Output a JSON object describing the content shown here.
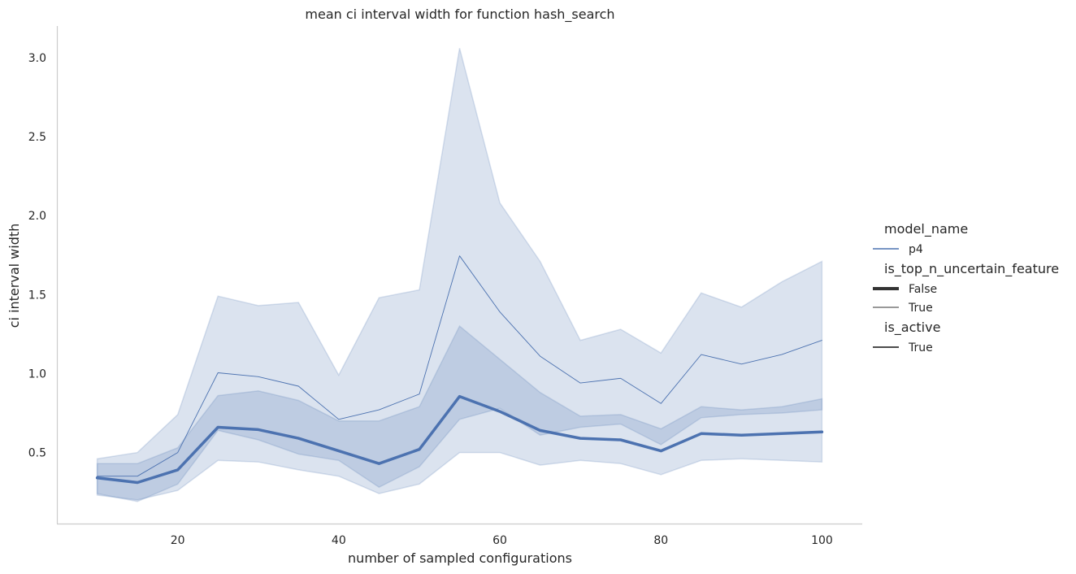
{
  "chart_data": {
    "type": "line",
    "title": "mean ci interval width for function hash_search",
    "xlabel": "number of sampled configurations",
    "ylabel": "ci interval width",
    "xlim": [
      5,
      105
    ],
    "ylim": [
      0.05,
      3.2
    ],
    "xticks": [
      20,
      40,
      60,
      80,
      100
    ],
    "yticks": [
      0.5,
      1.0,
      1.5,
      2.0,
      2.5,
      3.0
    ],
    "ytick_labels": [
      "0.5",
      "1.0",
      "1.5",
      "2.0",
      "2.5",
      "3.0"
    ],
    "grid": false,
    "color": "#4C72B0",
    "x": [
      10,
      15,
      20,
      25,
      30,
      35,
      40,
      45,
      50,
      55,
      60,
      65,
      70,
      75,
      80,
      85,
      90,
      95,
      100
    ],
    "series": [
      {
        "name": "False",
        "style": "thick",
        "values": [
          0.34,
          0.31,
          0.39,
          0.66,
          0.645,
          0.59,
          0.51,
          0.43,
          0.52,
          0.855,
          0.76,
          0.64,
          0.59,
          0.58,
          0.51,
          0.62,
          0.61,
          0.62,
          0.63
        ],
        "ci_low": [
          0.24,
          0.19,
          0.3,
          0.64,
          0.58,
          0.49,
          0.45,
          0.28,
          0.41,
          0.71,
          0.78,
          0.61,
          0.66,
          0.68,
          0.55,
          0.72,
          0.74,
          0.75,
          0.77
        ],
        "ci_high": [
          0.43,
          0.43,
          0.53,
          0.86,
          0.89,
          0.83,
          0.7,
          0.7,
          0.79,
          1.3,
          1.09,
          0.88,
          0.73,
          0.74,
          0.65,
          0.79,
          0.77,
          0.79,
          0.84
        ]
      },
      {
        "name": "True",
        "style": "thin",
        "values": [
          0.35,
          0.35,
          0.5,
          1.005,
          0.98,
          0.92,
          0.71,
          0.77,
          0.87,
          1.745,
          1.39,
          1.11,
          0.94,
          0.97,
          0.81,
          1.12,
          1.06,
          1.12,
          1.21
        ],
        "ci_low": [
          0.23,
          0.2,
          0.26,
          0.45,
          0.44,
          0.39,
          0.35,
          0.24,
          0.3,
          0.5,
          0.5,
          0.42,
          0.45,
          0.43,
          0.36,
          0.45,
          0.46,
          0.45,
          0.44
        ],
        "ci_high": [
          0.46,
          0.5,
          0.74,
          1.49,
          1.43,
          1.45,
          0.99,
          1.48,
          1.53,
          3.06,
          2.08,
          1.71,
          1.21,
          1.28,
          1.13,
          1.51,
          1.42,
          1.58,
          1.71
        ]
      }
    ],
    "legend": {
      "placement": "right",
      "groups": [
        {
          "title": "model_name",
          "entries": [
            {
              "label": "p4",
              "style": "color"
            }
          ]
        },
        {
          "title": "is_top_n_uncertain_feature",
          "entries": [
            {
              "label": "False",
              "style": "thick"
            },
            {
              "label": "True",
              "style": "thin"
            }
          ]
        },
        {
          "title": "is_active",
          "entries": [
            {
              "label": "True",
              "style": "dark"
            }
          ]
        }
      ]
    }
  }
}
